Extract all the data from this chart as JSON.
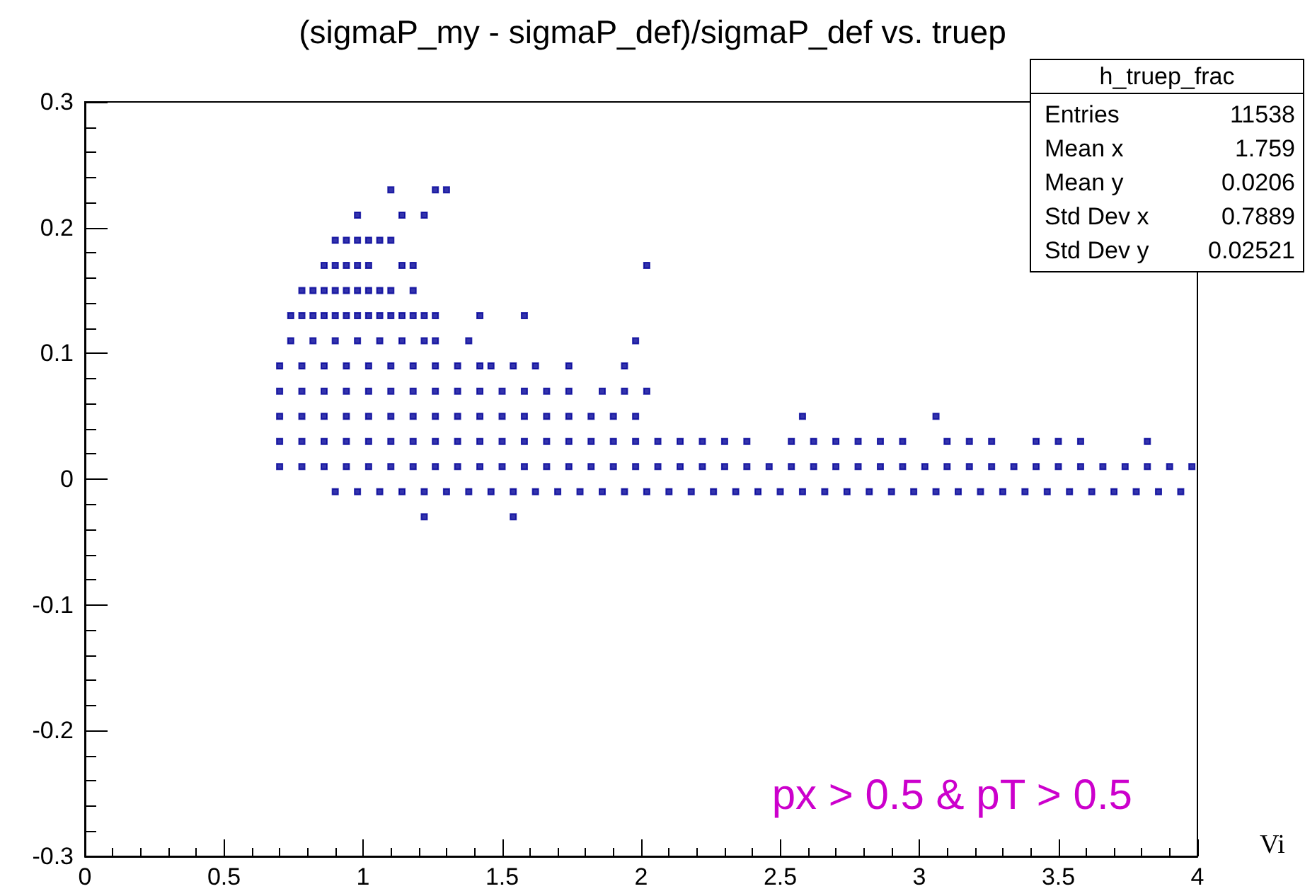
{
  "chart_data": {
    "type": "scatter",
    "title": "(sigmaP_my - sigmaP_def)/sigmaP_def vs. truep",
    "marker": "square",
    "grid": false,
    "xlim": [
      0,
      4
    ],
    "xticks": [
      0,
      0.5,
      1,
      1.5,
      2,
      2.5,
      3,
      3.5,
      4
    ],
    "ylim": [
      -0.3,
      0.3
    ],
    "yticks": [
      -0.3,
      -0.2,
      -0.1,
      0,
      0.1,
      0.2,
      0.3
    ],
    "annotations": [
      "h_truep_frac",
      "Entries 11538",
      "Mean x 1.759",
      "Mean y 0.0206",
      "Std Dev x 0.7889",
      "Std Dev y 0.02521",
      "px > 0.5 & pT > 0.5",
      "Vi"
    ],
    "series": [
      {
        "color": "#000099",
        "x": [
          1.1,
          1.26,
          1.3
        ],
        "values": [
          0.23,
          0.23,
          0.23
        ]
      },
      {
        "color": "#000099",
        "x": [
          0.98,
          1.14,
          1.22
        ],
        "values": [
          0.21,
          0.21,
          0.21
        ]
      },
      {
        "color": "#000099",
        "x": [
          0.9,
          0.94,
          0.98,
          1.02,
          1.06,
          1.1
        ],
        "values": [
          0.19,
          0.19,
          0.19,
          0.19,
          0.19,
          0.19
        ]
      },
      {
        "color": "#000099",
        "x": [
          0.86,
          0.9,
          0.94,
          0.98,
          1.02,
          1.14,
          1.18,
          2.02
        ],
        "values": [
          0.17,
          0.17,
          0.17,
          0.17,
          0.17,
          0.17,
          0.17,
          0.17
        ]
      },
      {
        "color": "#000099",
        "x": [
          0.78,
          0.82,
          0.86,
          0.9,
          0.94,
          0.98,
          1.02,
          1.06,
          1.1,
          1.18
        ],
        "values": [
          0.15,
          0.15,
          0.15,
          0.15,
          0.15,
          0.15,
          0.15,
          0.15,
          0.15,
          0.15
        ]
      },
      {
        "color": "#000099",
        "x": [
          0.74,
          0.78,
          0.82,
          0.86,
          0.9,
          0.94,
          0.98,
          1.02,
          1.06,
          1.1,
          1.14,
          1.18,
          1.22,
          1.26,
          1.42,
          1.58
        ],
        "values": [
          0.13,
          0.13,
          0.13,
          0.13,
          0.13,
          0.13,
          0.13,
          0.13,
          0.13,
          0.13,
          0.13,
          0.13,
          0.13,
          0.13,
          0.13,
          0.13
        ]
      },
      {
        "color": "#000099",
        "x": [
          0.74,
          0.82,
          0.9,
          0.98,
          1.06,
          1.14,
          1.22,
          1.26,
          1.38,
          1.98
        ],
        "values": [
          0.11,
          0.11,
          0.11,
          0.11,
          0.11,
          0.11,
          0.11,
          0.11,
          0.11,
          0.11
        ]
      },
      {
        "color": "#000099",
        "x": [
          0.7,
          0.78,
          0.86,
          0.94,
          1.02,
          1.1,
          1.18,
          1.26,
          1.34,
          1.42,
          1.46,
          1.54,
          1.62,
          1.74,
          1.94
        ],
        "values": [
          0.09,
          0.09,
          0.09,
          0.09,
          0.09,
          0.09,
          0.09,
          0.09,
          0.09,
          0.09,
          0.09,
          0.09,
          0.09,
          0.09,
          0.09
        ]
      },
      {
        "color": "#000099",
        "x": [
          0.7,
          0.78,
          0.86,
          0.94,
          1.02,
          1.1,
          1.18,
          1.26,
          1.34,
          1.42,
          1.5,
          1.58,
          1.66,
          1.74,
          1.86,
          1.94,
          2.02
        ],
        "values": [
          0.07,
          0.07,
          0.07,
          0.07,
          0.07,
          0.07,
          0.07,
          0.07,
          0.07,
          0.07,
          0.07,
          0.07,
          0.07,
          0.07,
          0.07,
          0.07,
          0.07
        ]
      },
      {
        "color": "#000099",
        "x": [
          0.7,
          0.78,
          0.86,
          0.94,
          1.02,
          1.1,
          1.18,
          1.26,
          1.34,
          1.42,
          1.5,
          1.58,
          1.66,
          1.74,
          1.82,
          1.9,
          1.98,
          2.58,
          3.06
        ],
        "values": [
          0.05,
          0.05,
          0.05,
          0.05,
          0.05,
          0.05,
          0.05,
          0.05,
          0.05,
          0.05,
          0.05,
          0.05,
          0.05,
          0.05,
          0.05,
          0.05,
          0.05,
          0.05,
          0.05
        ]
      },
      {
        "color": "#000099",
        "x": [
          0.7,
          0.78,
          0.86,
          0.94,
          1.02,
          1.1,
          1.18,
          1.26,
          1.34,
          1.42,
          1.5,
          1.58,
          1.66,
          1.74,
          1.82,
          1.9,
          1.98,
          2.06,
          2.14,
          2.22,
          2.3,
          2.38,
          2.54,
          2.62,
          2.7,
          2.78,
          2.86,
          2.94,
          3.1,
          3.18,
          3.26,
          3.42,
          3.5,
          3.58,
          3.82
        ],
        "values": [
          0.03,
          0.03,
          0.03,
          0.03,
          0.03,
          0.03,
          0.03,
          0.03,
          0.03,
          0.03,
          0.03,
          0.03,
          0.03,
          0.03,
          0.03,
          0.03,
          0.03,
          0.03,
          0.03,
          0.03,
          0.03,
          0.03,
          0.03,
          0.03,
          0.03,
          0.03,
          0.03,
          0.03,
          0.03,
          0.03,
          0.03,
          0.03,
          0.03,
          0.03,
          0.03
        ]
      },
      {
        "color": "#000099",
        "x": [
          0.7,
          0.78,
          0.86,
          0.94,
          1.02,
          1.1,
          1.18,
          1.26,
          1.34,
          1.42,
          1.5,
          1.58,
          1.66,
          1.74,
          1.82,
          1.9,
          1.98,
          2.06,
          2.14,
          2.22,
          2.3,
          2.38,
          2.46,
          2.54,
          2.62,
          2.7,
          2.78,
          2.86,
          2.94,
          3.02,
          3.1,
          3.18,
          3.26,
          3.34,
          3.42,
          3.5,
          3.58,
          3.66,
          3.74,
          3.82,
          3.9,
          3.98
        ],
        "values": [
          0.01,
          0.01,
          0.01,
          0.01,
          0.01,
          0.01,
          0.01,
          0.01,
          0.01,
          0.01,
          0.01,
          0.01,
          0.01,
          0.01,
          0.01,
          0.01,
          0.01,
          0.01,
          0.01,
          0.01,
          0.01,
          0.01,
          0.01,
          0.01,
          0.01,
          0.01,
          0.01,
          0.01,
          0.01,
          0.01,
          0.01,
          0.01,
          0.01,
          0.01,
          0.01,
          0.01,
          0.01,
          0.01,
          0.01,
          0.01,
          0.01,
          0.01
        ]
      },
      {
        "color": "#000099",
        "x": [
          0.9,
          0.98,
          1.06,
          1.14,
          1.22,
          1.3,
          1.38,
          1.46,
          1.54,
          1.62,
          1.7,
          1.78,
          1.86,
          1.94,
          2.02,
          2.1,
          2.18,
          2.26,
          2.34,
          2.42,
          2.5,
          2.58,
          2.66,
          2.74,
          2.82,
          2.9,
          2.98,
          3.06,
          3.14,
          3.22,
          3.3,
          3.38,
          3.46,
          3.54,
          3.62,
          3.7,
          3.78,
          3.86,
          3.94
        ],
        "values": [
          -0.01,
          -0.01,
          -0.01,
          -0.01,
          -0.01,
          -0.01,
          -0.01,
          -0.01,
          -0.01,
          -0.01,
          -0.01,
          -0.01,
          -0.01,
          -0.01,
          -0.01,
          -0.01,
          -0.01,
          -0.01,
          -0.01,
          -0.01,
          -0.01,
          -0.01,
          -0.01,
          -0.01,
          -0.01,
          -0.01,
          -0.01,
          -0.01,
          -0.01,
          -0.01,
          -0.01,
          -0.01,
          -0.01,
          -0.01,
          -0.01,
          -0.01,
          -0.01,
          -0.01,
          -0.01
        ]
      },
      {
        "color": "#000099",
        "x": [
          1.22,
          1.54
        ],
        "values": [
          -0.03,
          -0.03
        ]
      }
    ]
  }
}
